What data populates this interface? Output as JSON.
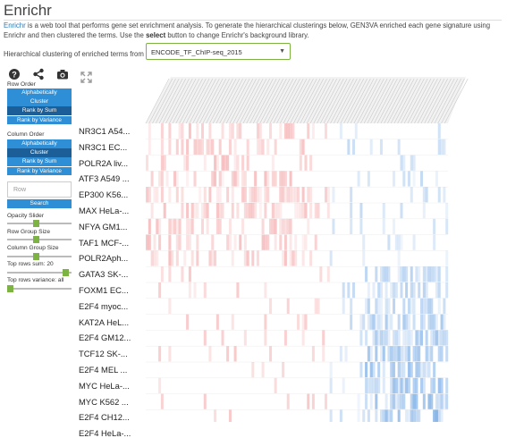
{
  "app": {
    "title": "Enrichr",
    "description_link": "Enrichr",
    "description_part1": " is a web tool that performs gene set enrichment analysis. To generate the hierarchical clusterings below, GEN3VA enriched each gene signature using Enrichr and then clustered the terms. Use the ",
    "description_bold": "select",
    "description_part2": " button to change Enrichr's background library."
  },
  "library": {
    "label": "Hierarchical clustering of enriched terms from",
    "selected": "ENCODE_TF_ChIP-seq_2015"
  },
  "toolbar": {
    "icons": [
      "help-icon",
      "share-icon",
      "camera-icon"
    ]
  },
  "row_order": {
    "label": "Row Order",
    "buttons": [
      "Alphabetically",
      "Cluster",
      "Rank by Sum",
      "Rank by Variance"
    ],
    "active_index": 2
  },
  "column_order": {
    "label": "Column Order",
    "buttons": [
      "Alphabetically",
      "Cluster",
      "Rank by Sum",
      "Rank by Variance"
    ],
    "active_index": 1
  },
  "search": {
    "placeholder": "Row",
    "button": "Search"
  },
  "sliders": [
    {
      "label": "Opacity Slider",
      "value": 0.45
    },
    {
      "label": "Row Group Size",
      "value": 0.45
    },
    {
      "label": "Column Group Size",
      "value": 0.45
    },
    {
      "label": "Top rows sum: 20",
      "value": 0.95
    },
    {
      "label": "Top rows variance: all",
      "value": 0.0
    }
  ],
  "heatmap": {
    "row_labels": [
      "NR3C1 A54...",
      "NR3C1 EC...",
      "POLR2A liv...",
      "ATF3 A549 ...",
      "EP300 K56...",
      "MAX HeLa-...",
      "NFYA GM1...",
      "TAF1 MCF-...",
      "POLR2Aph...",
      "GATA3 SK-...",
      "FOXM1 EC...",
      "E2F4 myoc...",
      "KAT2A HeL...",
      "E2F4 GM12...",
      "TCF12 SK-...",
      "E2F4 MEL ...",
      "MYC HeLa-...",
      "MYC K562 ...",
      "E2F4 CH12...",
      "E2F4 HeLa-..."
    ],
    "colors": {
      "positive": "#e8474a",
      "negative": "#2f7fd8"
    }
  }
}
